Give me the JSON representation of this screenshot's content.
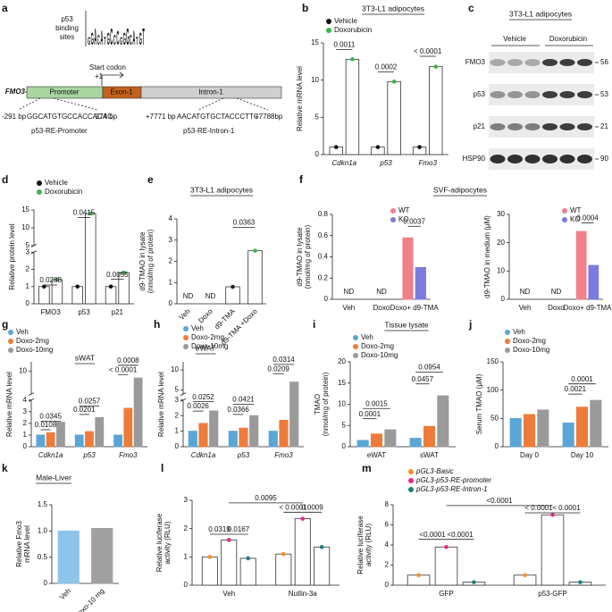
{
  "diagram_a": {
    "letter": "a",
    "logo": "GGACATGCCCGGGCATGT",
    "logo_label": [
      "p53",
      "binding",
      "sites"
    ],
    "start_codon": "Start codon",
    "plus1": "+1",
    "gene": "FMO3",
    "promoter": "Promoter",
    "exon": "Exon-1",
    "intron": "Intron-1",
    "left_pos": "-291 bp",
    "right_pos": "-274 bp",
    "seq1": "GGCATGTGCCACCACAC",
    "re1": "p53-RE-Promoter",
    "intron_left": "+7771 bp",
    "intron_right": "+7788bp",
    "seq2": "AACATGTGCTACCCTTC",
    "re2": "p53-RE-Intron-1"
  },
  "blot_c": {
    "letter": "c",
    "title": "3T3-L1 adipocytes",
    "groups": [
      "Vehicle",
      "Doxorubicin"
    ],
    "rows": [
      {
        "name": "FMO3",
        "marker": "56"
      },
      {
        "name": "p53",
        "marker": "53"
      },
      {
        "name": "p21",
        "marker": "21"
      },
      {
        "name": "HSP90",
        "marker": "90"
      }
    ]
  },
  "chart_data": [
    {
      "type": "bar",
      "letter": "b",
      "title": "3T3-L1 adipocytes",
      "ylabel": [
        "Relative mRNA level"
      ],
      "categories": [
        "Cdkn1a",
        "p53",
        "Fmo3"
      ],
      "series": [
        {
          "name": "Vehicle",
          "color": "#111111",
          "values": [
            1,
            1,
            1
          ]
        },
        {
          "name": "Doxorubicin",
          "color": "#3cb44b",
          "values": [
            12.8,
            9.8,
            11.8
          ]
        }
      ],
      "ylim": [
        0,
        15
      ],
      "yticks": [
        0,
        5,
        10,
        15
      ],
      "pvalues": [
        "0.0011",
        "0.0002",
        "< 0.0001"
      ]
    },
    {
      "type": "bar",
      "letter": "d",
      "ylabel": [
        "Relative protein level"
      ],
      "categories": [
        "FMO3",
        "p53",
        "p21"
      ],
      "series": [
        {
          "name": "Vehicle",
          "color": "#111111",
          "values": [
            1,
            1,
            1
          ]
        },
        {
          "name": "Doxorubicin",
          "color": "#3cb44b",
          "values": [
            1.4,
            14,
            1.8
          ]
        }
      ],
      "ylim": [
        0,
        15
      ],
      "ybreak": [
        3,
        5
      ],
      "yticks": [
        0,
        1,
        2,
        3,
        5,
        10,
        15
      ],
      "pvalues": [
        "0.0288",
        "0.0415",
        "0.0055"
      ]
    },
    {
      "type": "bar",
      "letter": "e",
      "title": "3T3-L1 adipocytes",
      "ylabel": [
        "d9-TMAO in lysate",
        "(nmol/mg of protein)"
      ],
      "categories": [
        "Veh",
        "Doxo",
        "d9-TMA",
        "d9-TMA +Doxo"
      ],
      "series": [
        {
          "colors": [
            "#888888",
            "#888888",
            "#222222",
            "#3cb44b"
          ],
          "values": [
            null,
            null,
            0.8,
            2.5
          ]
        }
      ],
      "nd_labels": [
        "ND",
        "ND",
        null,
        null
      ],
      "ylim": [
        0,
        4
      ],
      "yticks": [
        0,
        1,
        2,
        3,
        4
      ],
      "pvalues": [
        "0.0363"
      ]
    },
    {
      "type": "bar",
      "letter": "f",
      "title": "SVF-adipocytes",
      "ylabel": [
        "d9-TMAO in lysate",
        "(nmol/mg of protein)"
      ],
      "categories": [
        "Veh",
        "Doxo",
        "Doxo+ d9-TMA"
      ],
      "series": [
        {
          "name": "WT",
          "color": "#f0808a",
          "values": [
            null,
            null,
            0.58
          ]
        },
        {
          "name": "KO",
          "color": "#7a7ae0",
          "values": [
            null,
            null,
            0.3
          ]
        }
      ],
      "nd_labels": [
        "ND",
        "ND",
        null
      ],
      "ylim": [
        0,
        0.8
      ],
      "yticks": [
        0,
        0.2,
        0.4,
        0.6,
        0.8
      ],
      "pvalues": [
        "0.0037"
      ]
    },
    {
      "type": "bar",
      "ylabel": [
        "d9-TMAO in medium (μM)"
      ],
      "categories": [
        "Veh",
        "Doxo",
        "Doxo+ d9-TMA"
      ],
      "series": [
        {
          "name": "WT",
          "color": "#f0808a",
          "values": [
            null,
            null,
            24
          ]
        },
        {
          "name": "KO",
          "color": "#7a7ae0",
          "values": [
            null,
            null,
            12
          ]
        }
      ],
      "nd_labels": [
        "ND",
        "ND",
        null
      ],
      "ylim": [
        0,
        30
      ],
      "yticks": [
        0,
        10,
        20,
        30
      ],
      "pvalues": [
        "0.0004"
      ]
    },
    {
      "type": "bar",
      "letter": "g",
      "subtitle": "sWAT",
      "ylabel": [
        "Relative mRNA level"
      ],
      "categories": [
        "Cdkn1a",
        "p53",
        "Fmo3"
      ],
      "series": [
        {
          "name": "Veh",
          "color": "#5aa6d6",
          "values": [
            1,
            1,
            1
          ]
        },
        {
          "name": "Doxo-2mg",
          "color": "#ee7b3a",
          "values": [
            1.2,
            1.3,
            3.3
          ]
        },
        {
          "name": "Doxo-10mg",
          "color": "#9a9a9a",
          "values": [
            2.1,
            2.5,
            8.5
          ]
        }
      ],
      "ylim": [
        0,
        12
      ],
      "ybreak": [
        4,
        5
      ],
      "yticks": [
        0,
        1,
        2,
        3,
        4,
        10
      ],
      "pvalues": [
        "0.0108",
        "0.0345",
        "0.0201",
        "0.0257",
        "< 0.0001",
        "0.0008"
      ]
    },
    {
      "type": "bar",
      "letter": "h",
      "subtitle": "eWAT",
      "ylabel": [
        "Relative mRNA level"
      ],
      "categories": [
        "Cdkn1a",
        "p53",
        "Fmo3"
      ],
      "series": [
        {
          "name": "Veh",
          "color": "#5aa6d6",
          "values": [
            1,
            1,
            1
          ]
        },
        {
          "name": "Doxo-2mg",
          "color": "#ee7b3a",
          "values": [
            1.5,
            1.2,
            1.7
          ]
        },
        {
          "name": "Doxo-10mg",
          "color": "#9a9a9a",
          "values": [
            2.3,
            2,
            7
          ]
        }
      ],
      "ylim": [
        0,
        12
      ],
      "ybreak": [
        3,
        4
      ],
      "yticks": [
        0,
        1,
        2,
        3,
        5,
        10
      ],
      "pvalues": [
        "0.0026",
        "0.0252",
        "0.0366",
        "0.0421",
        "0.0209",
        "0.0314"
      ]
    },
    {
      "type": "bar",
      "letter": "i",
      "title": "Tissue lysate",
      "ylabel": [
        "TMAO",
        "(nmol/mg of protein)"
      ],
      "categories": [
        "eWAT",
        "sWAT"
      ],
      "series": [
        {
          "name": "Veh",
          "color": "#5aa6d6",
          "values": [
            1.5,
            2
          ]
        },
        {
          "name": "Doxo-2mg",
          "color": "#ee7b3a",
          "values": [
            3,
            4.8
          ]
        },
        {
          "name": "Doxo-10mg",
          "color": "#9a9a9a",
          "values": [
            4,
            12
          ]
        }
      ],
      "ylim": [
        0,
        20
      ],
      "yticks": [
        0,
        5,
        10,
        15,
        20
      ],
      "pvalues": [
        "0.0001",
        "0.0015",
        "0.0457",
        "0.0954"
      ]
    },
    {
      "type": "bar",
      "letter": "j",
      "ylabel": [
        "Serum TMAO (μM)"
      ],
      "categories": [
        "Day 0",
        "Day 10"
      ],
      "series": [
        {
          "name": "Veh",
          "color": "#5aa6d6",
          "values": [
            50,
            42
          ]
        },
        {
          "name": "Doxo-2mg",
          "color": "#ee7b3a",
          "values": [
            57,
            70
          ]
        },
        {
          "name": "Doxo-10mg",
          "color": "#9a9a9a",
          "values": [
            65,
            82
          ]
        }
      ],
      "ylim": [
        0,
        150
      ],
      "yticks": [
        0,
        50,
        100,
        150
      ],
      "pvalues": [
        "0.0021",
        "0.0001"
      ]
    },
    {
      "type": "bar",
      "letter": "k",
      "title": "Male-Liver",
      "ylabel": [
        "Relative Fmo3",
        "mRNA level"
      ],
      "categories": [
        "Veh",
        "Doxo-10 mg"
      ],
      "series": [
        {
          "colors": [
            "#8ec3ea",
            "#a0a0a0"
          ],
          "values": [
            1,
            1.05
          ]
        }
      ],
      "ylim": [
        0,
        1.5
      ],
      "yticks": [
        0,
        0.5,
        {
          "value": 1,
          "label": "1.0"
        },
        1.5
      ],
      "pvalues": []
    },
    {
      "type": "bar",
      "letter": "l",
      "ylabel": [
        "Relative luciferase",
        "activity (RLU)"
      ],
      "categories": [
        "Veh",
        "Nutlin-3a"
      ],
      "series": [
        {
          "color": "#f28e2b",
          "values": [
            1,
            1.1
          ]
        },
        {
          "color": "#e7298a",
          "values": [
            1.6,
            2.35
          ]
        },
        {
          "color": "#1b7f7f",
          "values": [
            0.95,
            1.35
          ]
        }
      ],
      "ylim": [
        0,
        3
      ],
      "yticks": [
        0,
        1,
        2,
        3
      ],
      "pvalues": [
        "0.0319",
        "0.0167",
        "0.0095",
        "< 0.0001",
        "0.0009"
      ]
    },
    {
      "type": "bar",
      "letter": "m",
      "ylabel": [
        "Relative luciferase",
        "activity (RLU)"
      ],
      "categories": [
        "GFP",
        "p53-GFP"
      ],
      "series": [
        {
          "name": "pGL3-Basic",
          "color": "#f28e2b",
          "values": [
            1,
            1
          ]
        },
        {
          "name": "pGL3-p53-RE-promoter",
          "color": "#e7298a",
          "values": [
            3.8,
            7
          ]
        },
        {
          "name": "pGL3-p53-RE-Intron-1",
          "color": "#1b7f7f",
          "values": [
            0.3,
            0.3
          ]
        }
      ],
      "ylim": [
        0,
        8
      ],
      "yticks": [
        0,
        2,
        4,
        6,
        8
      ],
      "pvalues": [
        "<0.0001",
        "< 0.0001",
        "< 0.0001",
        "<0.0001",
        "<0.0001"
      ]
    }
  ]
}
